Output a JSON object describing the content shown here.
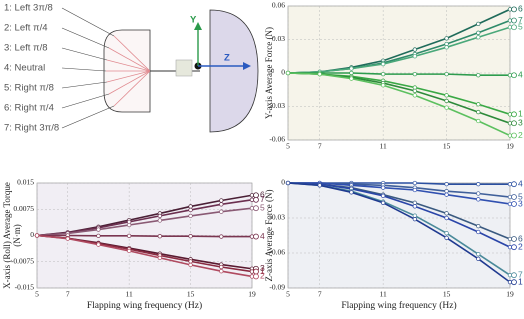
{
  "diagram": {
    "labels": [
      "1:  Left 3π/8",
      "2:  Left π/4",
      "3:  Left π/8",
      "4:  Neutral",
      "5:  Right π/8",
      "6:  Right π/4",
      "7:  Right 3π/8"
    ],
    "y_axis": "Y",
    "z_axis": "Z"
  },
  "chart_data": [
    {
      "type": "line",
      "ylabel": "Y-axis Average Force (N)",
      "x": [
        5,
        7,
        9,
        11,
        13,
        15,
        17,
        19
      ],
      "xlim": [
        5,
        19
      ],
      "xticks": [
        5,
        7,
        11,
        15,
        19
      ],
      "ylim": [
        -0.06,
        0.06
      ],
      "yticks": [
        -0.06,
        -0.03,
        0,
        0.03,
        0.06
      ],
      "grid": true,
      "series": [
        {
          "name": "6",
          "color": "#1f6b5a",
          "values": [
            0,
            0.001,
            0.005,
            0.011,
            0.021,
            0.031,
            0.044,
            0.057
          ]
        },
        {
          "name": "7",
          "color": "#2f8a6a",
          "values": [
            0,
            0.001,
            0.004,
            0.009,
            0.017,
            0.026,
            0.036,
            0.047
          ]
        },
        {
          "name": "5",
          "color": "#4aa87a",
          "values": [
            0,
            0.001,
            0.004,
            0.008,
            0.015,
            0.023,
            0.032,
            0.041
          ]
        },
        {
          "name": "4",
          "color": "#2e9c4e",
          "values": [
            0,
            0,
            0,
            -0.001,
            -0.001,
            -0.001,
            -0.002,
            -0.002
          ]
        },
        {
          "name": "1",
          "color": "#3aa845",
          "values": [
            0,
            -0.001,
            -0.003,
            -0.007,
            -0.013,
            -0.02,
            -0.028,
            -0.037
          ]
        },
        {
          "name": "3",
          "color": "#2d8a3a",
          "values": [
            0,
            -0.001,
            -0.004,
            -0.009,
            -0.016,
            -0.025,
            -0.035,
            -0.045
          ]
        },
        {
          "name": "2",
          "color": "#5cc05f",
          "values": [
            0,
            -0.001,
            -0.005,
            -0.011,
            -0.02,
            -0.031,
            -0.043,
            -0.056
          ]
        }
      ]
    },
    {
      "type": "line",
      "ylabel": [
        "X-axis (Roll)  Average Torque",
        "(N·m)"
      ],
      "xlabel": "Flapping wing frequency (Hz)",
      "x": [
        5,
        7,
        9,
        11,
        13,
        15,
        17,
        19
      ],
      "xlim": [
        5,
        19
      ],
      "xticks": [
        5,
        7,
        11,
        15,
        19
      ],
      "ylim": [
        -0.015,
        0.015
      ],
      "yticks": [
        -0.015,
        -0.0075,
        0,
        0.0075,
        0.015
      ],
      "grid": true,
      "series": [
        {
          "name": "6",
          "color": "#4a1f35",
          "values": [
            0,
            0.0009,
            0.0025,
            0.0044,
            0.0063,
            0.0083,
            0.01,
            0.0115
          ]
        },
        {
          "name": "7",
          "color": "#6b2f4f",
          "values": [
            0,
            0.0008,
            0.0022,
            0.0039,
            0.0056,
            0.0073,
            0.0089,
            0.0102
          ]
        },
        {
          "name": "5",
          "color": "#8a5a74",
          "values": [
            0,
            0.0006,
            0.0017,
            0.003,
            0.0043,
            0.0056,
            0.0068,
            0.0078
          ]
        },
        {
          "name": "4",
          "color": "#7a3550",
          "values": [
            0,
            0,
            -0.0001,
            -0.0001,
            -0.0002,
            -0.0002,
            -0.0003,
            -0.0003
          ]
        },
        {
          "name": "3",
          "color": "#5a1a30",
          "values": [
            0,
            -0.0008,
            -0.0021,
            -0.0036,
            -0.0052,
            -0.0068,
            -0.0083,
            -0.0095
          ]
        },
        {
          "name": "1",
          "color": "#8a2a40",
          "values": [
            0,
            -0.0008,
            -0.0023,
            -0.0039,
            -0.0057,
            -0.0074,
            -0.009,
            -0.0103
          ]
        },
        {
          "name": "2",
          "color": "#b04a60",
          "values": [
            0,
            -0.0009,
            -0.0026,
            -0.0044,
            -0.0064,
            -0.0084,
            -0.0102,
            -0.0117
          ]
        }
      ]
    },
    {
      "type": "line",
      "ylabel": "Z-axis Average Force (N)",
      "xlabel": "Flapping wing frequency (Hz)",
      "x": [
        5,
        7,
        9,
        11,
        13,
        15,
        17,
        19
      ],
      "xlim": [
        5,
        19
      ],
      "xticks": [
        5,
        7,
        11,
        15,
        19
      ],
      "ylim": [
        -0.09,
        0
      ],
      "yticks": [
        -0.09,
        -0.06,
        -0.03,
        0
      ],
      "grid": true,
      "series": [
        {
          "name": "4",
          "color": "#2a4fa0",
          "values": [
            0,
            0,
            0,
            0,
            0,
            -0.001,
            -0.001,
            -0.001
          ]
        },
        {
          "name": "5",
          "color": "#3f5f9a",
          "values": [
            0,
            0,
            -0.001,
            -0.002,
            -0.004,
            -0.007,
            -0.009,
            -0.012
          ]
        },
        {
          "name": "3",
          "color": "#3050b0",
          "values": [
            0,
            0,
            -0.002,
            -0.004,
            -0.006,
            -0.01,
            -0.014,
            -0.018
          ]
        },
        {
          "name": "6",
          "color": "#3a5a80",
          "values": [
            0,
            -0.001,
            -0.004,
            -0.01,
            -0.017,
            -0.026,
            -0.037,
            -0.048
          ]
        },
        {
          "name": "2",
          "color": "#2a45a8",
          "values": [
            0,
            -0.001,
            -0.005,
            -0.011,
            -0.02,
            -0.03,
            -0.042,
            -0.055
          ]
        },
        {
          "name": "7",
          "color": "#4a8a9a",
          "values": [
            0,
            -0.002,
            -0.007,
            -0.016,
            -0.028,
            -0.043,
            -0.061,
            -0.079
          ]
        },
        {
          "name": "1",
          "color": "#1f3a90",
          "values": [
            0,
            -0.002,
            -0.008,
            -0.017,
            -0.031,
            -0.047,
            -0.065,
            -0.085
          ]
        }
      ]
    }
  ]
}
